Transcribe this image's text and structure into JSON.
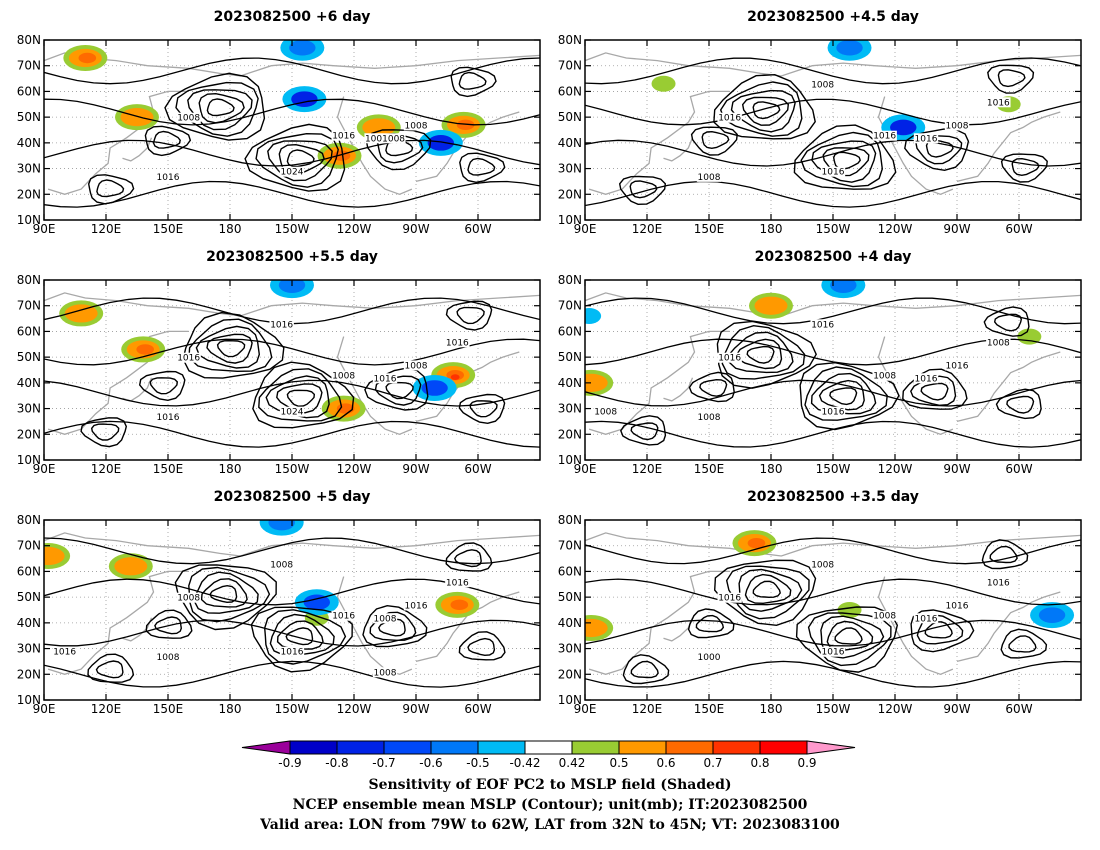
{
  "chart_data": [
    {
      "type": "contour",
      "title": "2023082500 +6 day",
      "x_ticks": [
        "90E",
        "120E",
        "150E",
        "180",
        "150W",
        "120W",
        "90W",
        "60W"
      ],
      "y_ticks": [
        "10N",
        "20N",
        "30N",
        "40N",
        "50N",
        "60N",
        "70N",
        "80N"
      ],
      "contour_labels": [
        "1008",
        "1016",
        "1016",
        "1024",
        "1001008",
        "1008"
      ],
      "shaded_regions": [
        {
          "lon": 110,
          "lat": 73,
          "value": 0.7
        },
        {
          "lon": 135,
          "lat": 50,
          "value": 0.6
        },
        {
          "lon": 233,
          "lat": 35,
          "value": 0.7
        },
        {
          "lon": 252,
          "lat": 46,
          "value": 0.6
        },
        {
          "lon": 293,
          "lat": 47,
          "value": 0.7
        },
        {
          "lon": 216,
          "lat": 57,
          "value": -0.8
        },
        {
          "lon": 282,
          "lat": 40,
          "value": -0.8
        },
        {
          "lon": 215,
          "lat": 77,
          "value": -0.6
        }
      ]
    },
    {
      "type": "contour",
      "title": "2023082500 +4.5 day",
      "x_ticks": [
        "90E",
        "120E",
        "150E",
        "180",
        "150W",
        "120W",
        "90W",
        "60W"
      ],
      "y_ticks": [
        "10N",
        "20N",
        "30N",
        "40N",
        "50N",
        "60N",
        "70N",
        "80N"
      ],
      "contour_labels": [
        "1016",
        "1016",
        "1008",
        "1016",
        "1016",
        "1008",
        "1016",
        "1008"
      ],
      "shaded_regions": [
        {
          "lon": 128,
          "lat": 63,
          "value": 0.5
        },
        {
          "lon": 218,
          "lat": 77,
          "value": -0.6
        },
        {
          "lon": 244,
          "lat": 46,
          "value": -0.8
        },
        {
          "lon": 295,
          "lat": 55,
          "value": 0.5
        }
      ]
    },
    {
      "type": "contour",
      "title": "2023082500 +5.5 day",
      "x_ticks": [
        "90E",
        "120E",
        "150E",
        "180",
        "150W",
        "120W",
        "90W",
        "60W"
      ],
      "y_ticks": [
        "10N",
        "20N",
        "30N",
        "40N",
        "50N",
        "60N",
        "70N",
        "80N"
      ],
      "contour_labels": [
        "1016",
        "1008",
        "1016",
        "1024",
        "1016",
        "1008",
        "1016",
        "1016"
      ],
      "shaded_regions": [
        {
          "lon": 108,
          "lat": 67,
          "value": 0.6
        },
        {
          "lon": 138,
          "lat": 53,
          "value": 0.7
        },
        {
          "lon": 235,
          "lat": 30,
          "value": 0.7
        },
        {
          "lon": 288,
          "lat": 43,
          "value": 0.8
        },
        {
          "lon": 279,
          "lat": 38,
          "value": -0.7
        },
        {
          "lon": 210,
          "lat": 78,
          "value": -0.6
        }
      ]
    },
    {
      "type": "contour",
      "title": "2023082500 +4 day",
      "x_ticks": [
        "90E",
        "120E",
        "150E",
        "180",
        "150W",
        "120W",
        "90W",
        "60W"
      ],
      "y_ticks": [
        "10N",
        "20N",
        "30N",
        "40N",
        "50N",
        "60N",
        "70N",
        "80N"
      ],
      "contour_labels": [
        "1016",
        "1008",
        "1008",
        "1016",
        "1016",
        "1016",
        "1008",
        "1016",
        "1008"
      ],
      "shaded_regions": [
        {
          "lon": 180,
          "lat": 70,
          "value": 0.6
        },
        {
          "lon": 93,
          "lat": 40,
          "value": 0.6
        },
        {
          "lon": 215,
          "lat": 78,
          "value": -0.6
        },
        {
          "lon": 92,
          "lat": 66,
          "value": -0.5
        },
        {
          "lon": 305,
          "lat": 58,
          "value": 0.5
        }
      ]
    },
    {
      "type": "contour",
      "title": "2023082500 +5 day",
      "x_ticks": [
        "90E",
        "120E",
        "150E",
        "180",
        "150W",
        "120W",
        "90W",
        "60W"
      ],
      "y_ticks": [
        "10N",
        "20N",
        "30N",
        "40N",
        "50N",
        "60N",
        "70N",
        "80N"
      ],
      "contour_labels": [
        "1008",
        "1016",
        "1008",
        "1016",
        "1008",
        "1016",
        "1016",
        "1008",
        "1016",
        "1008"
      ],
      "shaded_regions": [
        {
          "lon": 132,
          "lat": 62,
          "value": 0.6
        },
        {
          "lon": 92,
          "lat": 66,
          "value": 0.6
        },
        {
          "lon": 290,
          "lat": 47,
          "value": 0.7
        },
        {
          "lon": 222,
          "lat": 42,
          "value": 0.5
        },
        {
          "lon": 205,
          "lat": 79,
          "value": -0.6
        },
        {
          "lon": 222,
          "lat": 48,
          "value": -0.7
        }
      ]
    },
    {
      "type": "contour",
      "title": "2023082500 +3.5 day",
      "x_ticks": [
        "90E",
        "120E",
        "150E",
        "180",
        "150W",
        "120W",
        "90W",
        "60W"
      ],
      "y_ticks": [
        "10N",
        "20N",
        "30N",
        "40N",
        "50N",
        "60N",
        "70N",
        "80N"
      ],
      "contour_labels": [
        "1016",
        "1008",
        "1000",
        "1016",
        "1016",
        "1016",
        "1016",
        "1008"
      ],
      "shaded_regions": [
        {
          "lon": 172,
          "lat": 71,
          "value": 0.7
        },
        {
          "lon": 218,
          "lat": 45,
          "value": 0.5
        },
        {
          "lon": 93,
          "lat": 38,
          "value": 0.6
        },
        {
          "lon": 316,
          "lat": 43,
          "value": -0.6
        }
      ]
    }
  ],
  "colorbar": {
    "tick_labels": [
      "-0.9",
      "-0.8",
      "-0.7",
      "-0.6",
      "-0.5",
      "-0.42",
      "0.42",
      "0.5",
      "0.6",
      "0.7",
      "0.8",
      "0.9"
    ],
    "colors": [
      "#9a009a",
      "#0000c8",
      "#0022e6",
      "#0048f8",
      "#0078f8",
      "#00bbf5",
      "#ffffff",
      "#99cc33",
      "#ff9900",
      "#ff6a00",
      "#ff3300",
      "#ff0000",
      "#ff99cc"
    ]
  },
  "caption": {
    "line1": "Sensitivity of EOF PC2 to MSLP field (Shaded)",
    "line2": "NCEP ensemble mean MSLP (Contour); unit(mb); IT:2023082500",
    "line3": "Valid area: LON from 79W to 62W, LAT from 32N to 45N; VT: 2023083100"
  }
}
